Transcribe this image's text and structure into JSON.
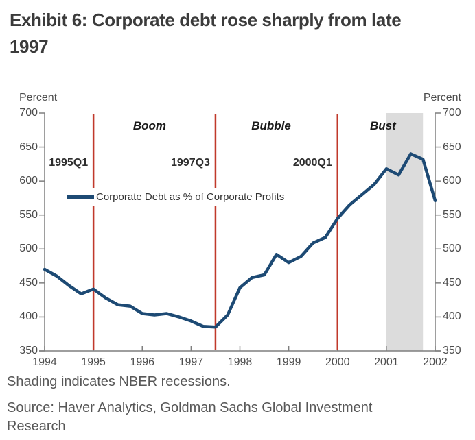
{
  "title": {
    "line1": "Exhibit 6: Corporate debt rose sharply from late",
    "line2": "1997"
  },
  "chart": {
    "left_axis_title": "Percent",
    "right_axis_title": "Percent",
    "legend_label": "Corporate Debt as % of Corporate Profits"
  },
  "chart_data": {
    "type": "line",
    "title": "Exhibit 6: Corporate debt rose sharply from late 1997",
    "xlabel": "",
    "ylabel": "Percent",
    "xlim": [
      1994,
      2002
    ],
    "ylim": [
      350,
      700
    ],
    "x_ticks": [
      1994,
      1995,
      1996,
      1997,
      1998,
      1999,
      2000,
      2001,
      2002
    ],
    "y_ticks": [
      700,
      650,
      600,
      550,
      500,
      450,
      400,
      350
    ],
    "grid": false,
    "legend_position": "upper-left-inside",
    "series": [
      {
        "name": "Corporate Debt as % of Corporate Profits",
        "color": "#1d4a74",
        "x": [
          1994.0,
          1994.25,
          1994.5,
          1994.75,
          1995.0,
          1995.25,
          1995.5,
          1995.75,
          1996.0,
          1996.25,
          1996.5,
          1996.75,
          1997.0,
          1997.25,
          1997.5,
          1997.75,
          1998.0,
          1998.25,
          1998.5,
          1998.75,
          1999.0,
          1999.25,
          1999.5,
          1999.75,
          2000.0,
          2000.25,
          2000.5,
          2000.75,
          2001.0,
          2001.25,
          2001.5,
          2001.75,
          2002.0
        ],
        "values": [
          470,
          460,
          446,
          434,
          441,
          428,
          418,
          416,
          405,
          403,
          405,
          400,
          394,
          386,
          385,
          403,
          443,
          458,
          462,
          492,
          480,
          489,
          509,
          517,
          545,
          565,
          580,
          595,
          618,
          609,
          640,
          632,
          571
        ]
      }
    ],
    "event_lines": [
      {
        "x": 1995.0,
        "label": "1995Q1",
        "color": "#c0392b"
      },
      {
        "x": 1997.5,
        "label": "1997Q3",
        "color": "#c0392b"
      },
      {
        "x": 2000.0,
        "label": "2000Q1",
        "color": "#c0392b"
      }
    ],
    "phase_labels": [
      {
        "label": "Boom",
        "x": 1996.15
      },
      {
        "label": "Bubble",
        "x": 1998.64
      },
      {
        "label": "Bust",
        "x": 2000.93
      }
    ],
    "recession_band": {
      "start": 2001.0,
      "end": 2001.75,
      "color": "#dcdcdc"
    }
  },
  "colors": {
    "line": "#1d4a74",
    "event_line": "#c0392b",
    "recession_shading": "#dcdcdc",
    "axis": "#7f7f7f",
    "tick_text": "#4d4d4d"
  },
  "footnote": "Shading indicates NBER recessions.",
  "source": "Source: Haver Analytics, Goldman Sachs Global Investment Research"
}
